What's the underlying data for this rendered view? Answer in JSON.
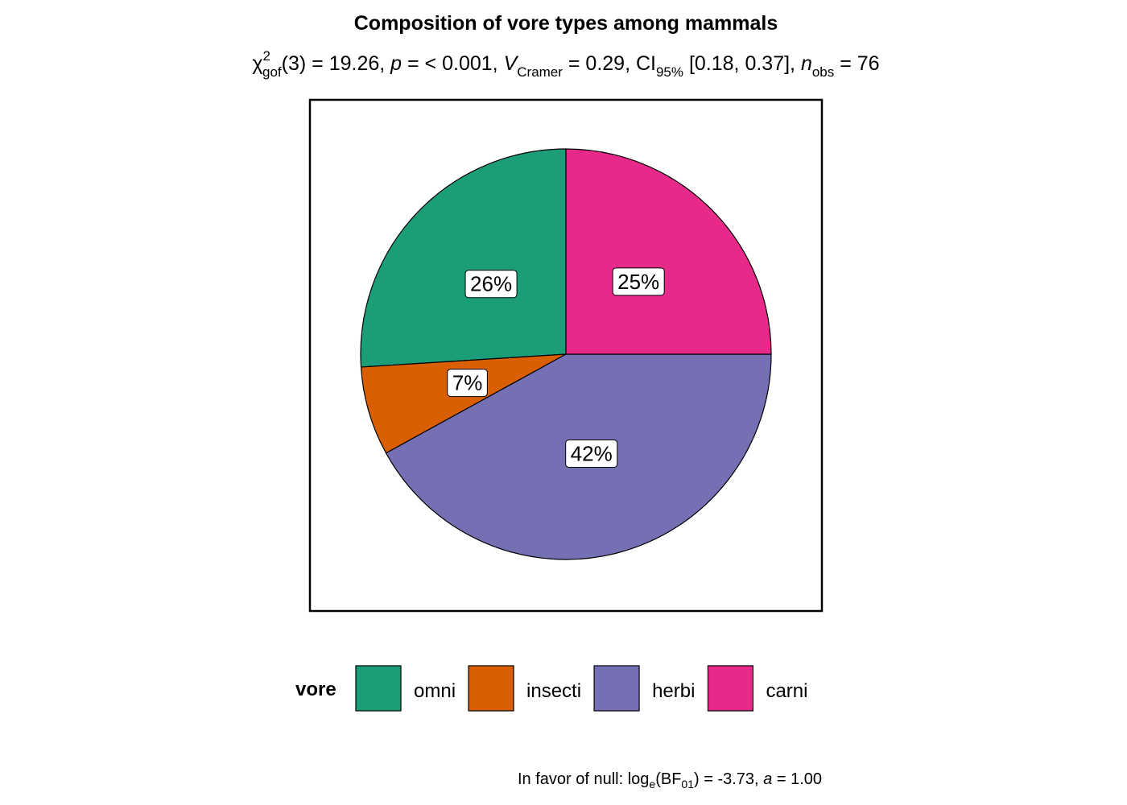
{
  "chart_data": {
    "type": "pie",
    "title": "Composition of vore types among mammals",
    "subtitle": [
      "χ",
      "2",
      "gof",
      "(3) = 19.26, ",
      "p",
      " = < 0.001, ",
      "V",
      "Cramer",
      " = 0.29, CI",
      "95%",
      " [0.18, 0.37], ",
      "n",
      "obs",
      " = 76"
    ],
    "caption": [
      "In favor of null: log",
      "e",
      "(BF",
      "01",
      ") = -3.73, ",
      "a",
      " = 1.00"
    ],
    "legend_title": "vore",
    "categories": [
      "omni",
      "insecti",
      "herbi",
      "carni"
    ],
    "values": [
      26,
      7,
      42,
      25
    ],
    "value_labels": [
      "26%",
      "7%",
      "42%",
      "25%"
    ],
    "colors": [
      "#1b9e77",
      "#d95f02",
      "#7570b3",
      "#e7298a"
    ],
    "legend_position": "bottom"
  }
}
